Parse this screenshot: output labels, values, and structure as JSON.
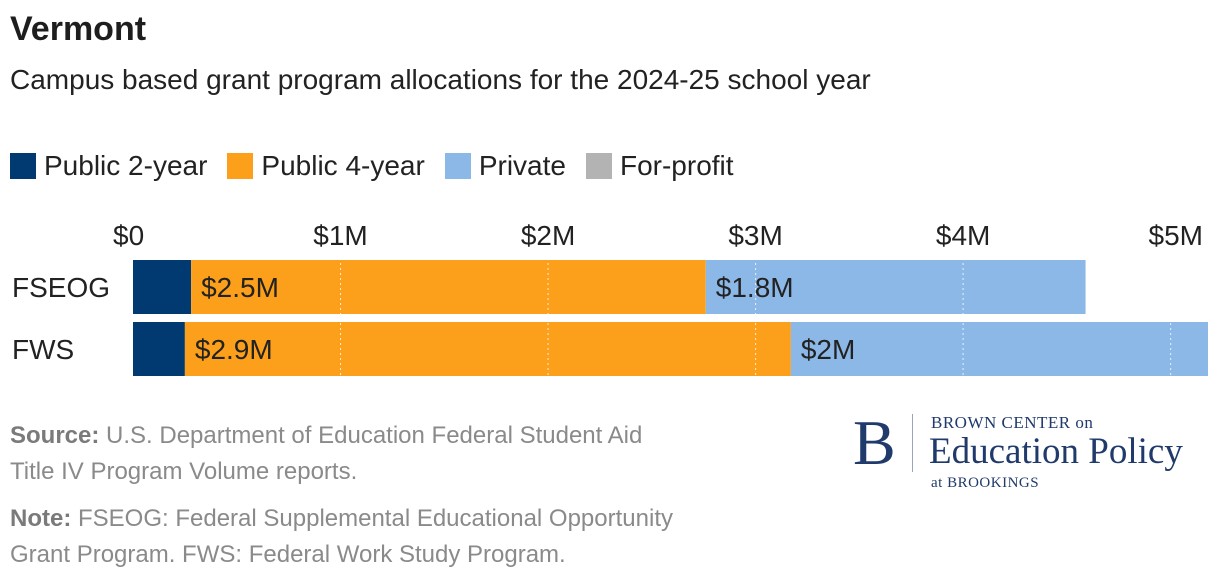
{
  "title": "Vermont",
  "subtitle": "Campus based grant program allocations for the 2024-25 school year",
  "legend": [
    {
      "label": "Public 2-year",
      "color": "#003a70"
    },
    {
      "label": "Public 4-year",
      "color": "#fca01b"
    },
    {
      "label": "Private",
      "color": "#8cb8e8"
    },
    {
      "label": "For-profit",
      "color": "#b3b3b3"
    }
  ],
  "chart_data": {
    "type": "bar",
    "orientation": "horizontal",
    "stacked": true,
    "categories": [
      "FSEOG",
      "FWS"
    ],
    "series": [
      {
        "name": "Public 2-year",
        "color": "#003a70",
        "values": [
          0.28,
          0.25
        ],
        "labels": [
          "",
          ""
        ]
      },
      {
        "name": "Public 4-year",
        "color": "#fca01b",
        "values": [
          2.48,
          2.92
        ],
        "labels": [
          "$2.5M",
          "$2.9M"
        ]
      },
      {
        "name": "Private",
        "color": "#8cb8e8",
        "values": [
          1.83,
          2.01
        ],
        "labels": [
          "$1.8M",
          "$2M"
        ]
      },
      {
        "name": "For-profit",
        "color": "#b3b3b3",
        "values": [
          0,
          0
        ],
        "labels": [
          "",
          ""
        ]
      }
    ],
    "xticks": [
      0,
      1,
      2,
      3,
      4,
      5
    ],
    "xtick_labels": [
      "$0",
      "$1M",
      "$2M",
      "$3M",
      "$4M",
      "$5M"
    ],
    "xlim": [
      0,
      5.18
    ],
    "axis_position": "top",
    "grid": true,
    "legend_position": "top-left"
  },
  "footer": {
    "source_label": "Source:",
    "source_line1": "U.S. Department of Education Federal Student Aid",
    "source_line2": "Title IV Program Volume reports.",
    "note_label": "Note:",
    "note_line1": "FSEOG: Federal Supplemental Educational Opportunity",
    "note_line2": "Grant Program. FWS: Federal Work Study Program."
  },
  "logo": {
    "letter": "B",
    "line1": "BROWN CENTER on",
    "line2": "Education Policy",
    "line3": "at BROOKINGS"
  }
}
